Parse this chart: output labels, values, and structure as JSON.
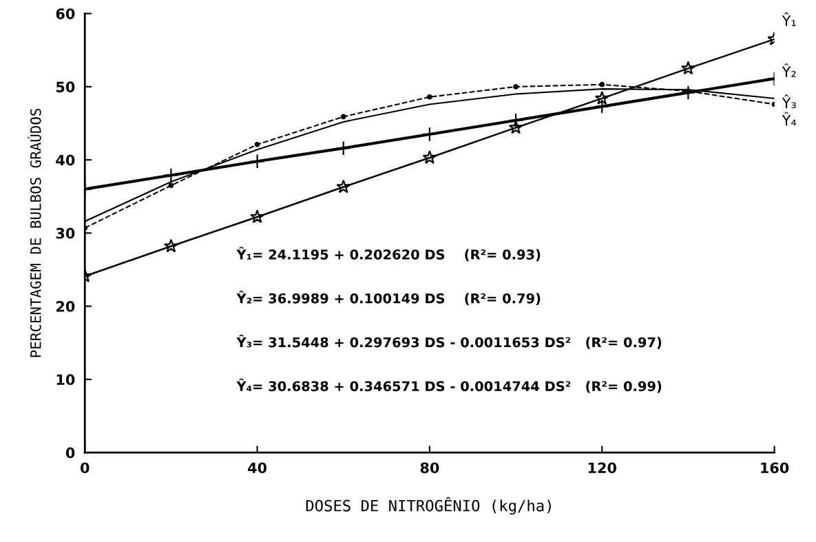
{
  "chart_data": {
    "type": "line",
    "xlabel": "DOSES DE NITROGÊNIO (kg/ha)",
    "ylabel": "PERCENTAGEM DE BULBOS GRAÚDOS",
    "x": [
      0,
      20,
      40,
      60,
      80,
      100,
      120,
      140,
      160
    ],
    "series": [
      {
        "name": "Ŷ₁",
        "color": "#000000",
        "marker": "star",
        "line_style": "solid",
        "values": [
          24.1,
          28.2,
          32.2,
          36.3,
          40.3,
          44.4,
          48.4,
          52.5,
          56.5
        ]
      },
      {
        "name": "Ŷ₂",
        "color": "#000000",
        "marker": "cross",
        "line_style": "solid",
        "values": [
          36.0,
          37.9,
          39.8,
          41.6,
          43.5,
          45.4,
          47.3,
          49.2,
          51.1
        ]
      },
      {
        "name": "Ŷ₃",
        "color": "#000000",
        "marker": "none",
        "line_style": "solid",
        "values": [
          31.6,
          37.0,
          41.4,
          45.2,
          47.6,
          49.0,
          49.7,
          49.6,
          48.4
        ]
      },
      {
        "name": "Ŷ₄",
        "color": "#000000",
        "marker": "circle",
        "line_style": "dashed",
        "values": [
          30.7,
          36.5,
          42.1,
          45.9,
          48.6,
          50.0,
          50.3,
          49.4,
          47.6
        ]
      }
    ],
    "xlim": [
      0,
      160
    ],
    "xticks": [
      0,
      40,
      80,
      120,
      160
    ],
    "ylim": [
      0,
      60
    ],
    "yticks": [
      0,
      10,
      20,
      30,
      40,
      50,
      60
    ],
    "grid": false,
    "legend": false,
    "annotations": [
      "Ŷ₁= 24.1195 + 0.202620 DS    (R²= 0.93)",
      "Ŷ₂= 36.9989 + 0.100149 DS    (R²= 0.79)",
      "Ŷ₃= 31.5448 + 0.297693 DS - 0.0011653 DS²   (R²= 0.97)",
      "Ŷ₄= 30.6838 + 0.346571 DS - 0.0014744 DS²   (R²= 0.99)"
    ]
  }
}
